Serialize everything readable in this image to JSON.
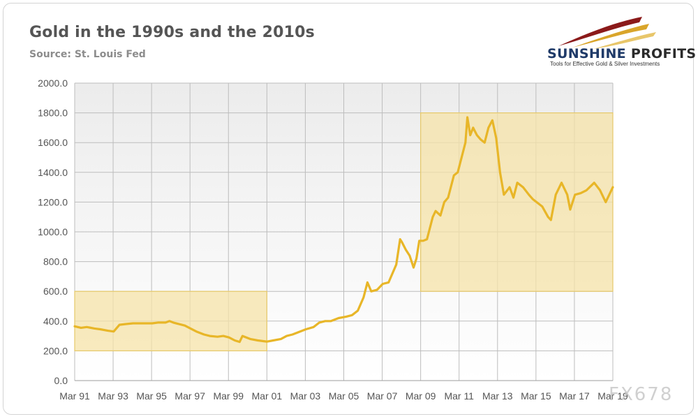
{
  "header": {
    "title": "Gold in the 1990s and the 2010s",
    "subtitle": "Source: St. Louis Fed"
  },
  "logo": {
    "name_part1": "SUNSHINE",
    "name_part2": " PROFITS",
    "tagline": "Tools for Effective Gold & Silver Investments"
  },
  "watermark": "FX678",
  "colors": {
    "line": "#e8b628",
    "highlight_fill": "#f5e3a8",
    "highlight_stroke": "#e6c96a",
    "plot_bg_top": "#ececec",
    "plot_bg_bottom": "#ffffff",
    "grid": "#bdbdbd"
  },
  "chart_data": {
    "type": "line",
    "title": "Gold in the 1990s and the 2010s",
    "xlabel": "",
    "ylabel": "",
    "xlim": [
      1991.17,
      2019.17
    ],
    "ylim": [
      0,
      2000
    ],
    "yticks": [
      "0.0",
      "200.0",
      "400.0",
      "600.0",
      "800.0",
      "1000.0",
      "1200.0",
      "1400.0",
      "1600.0",
      "1800.0",
      "2000.0"
    ],
    "xticks": [
      "Mar 91",
      "Mar 93",
      "Mar 95",
      "Mar 97",
      "Mar 99",
      "Mar 01",
      "Mar 03",
      "Mar 05",
      "Mar 07",
      "Mar 09",
      "Mar 11",
      "Mar 13",
      "Mar 15",
      "Mar 17",
      "Mar 19"
    ],
    "grid": true,
    "legend": "none",
    "highlight_regions": [
      {
        "x_from": "Mar 91",
        "x_to": "Mar 01",
        "y_from": 200,
        "y_to": 600
      },
      {
        "x_from": "Mar 09",
        "x_to": "Mar 19",
        "y_from": 600,
        "y_to": 1800
      }
    ],
    "series": [
      {
        "x": [
          1991.17,
          1991.5,
          1991.8,
          1992.2,
          1992.5,
          1992.9,
          1993.2,
          1993.5,
          1993.8,
          1994.2,
          1994.5,
          1994.9,
          1995.2,
          1995.5,
          1995.9,
          1996.1,
          1996.3,
          1996.6,
          1996.9,
          1997.2,
          1997.5,
          1997.9,
          1998.2,
          1998.6,
          1998.9,
          1999.2,
          1999.5,
          1999.75,
          1999.9,
          2000.3,
          2000.7,
          2001.17,
          2001.5,
          2001.9,
          2002.2,
          2002.5,
          2002.9,
          2003.2,
          2003.6,
          2003.9,
          2004.2,
          2004.5,
          2004.9,
          2005.3,
          2005.6,
          2005.9,
          2006.2,
          2006.4,
          2006.6,
          2006.9,
          2007.2,
          2007.5,
          2007.9,
          2008.1,
          2008.2,
          2008.4,
          2008.6,
          2008.8,
          2008.95,
          2009.1,
          2009.3,
          2009.5,
          2009.8,
          2009.95,
          2010.2,
          2010.4,
          2010.6,
          2010.9,
          2011.1,
          2011.3,
          2011.5,
          2011.6,
          2011.75,
          2011.9,
          2012.1,
          2012.3,
          2012.5,
          2012.7,
          2012.9,
          2013.1,
          2013.3,
          2013.5,
          2013.8,
          2014.0,
          2014.2,
          2014.5,
          2014.8,
          2015.0,
          2015.2,
          2015.5,
          2015.8,
          2015.95,
          2016.2,
          2016.5,
          2016.8,
          2016.95,
          2017.2,
          2017.5,
          2017.8,
          2018.2,
          2018.5,
          2018.8,
          2019.17
        ],
        "y": [
          365,
          355,
          360,
          350,
          345,
          335,
          330,
          375,
          380,
          385,
          385,
          385,
          385,
          390,
          390,
          400,
          390,
          380,
          370,
          350,
          330,
          310,
          300,
          295,
          300,
          290,
          270,
          260,
          300,
          280,
          270,
          262,
          270,
          280,
          300,
          310,
          330,
          345,
          360,
          390,
          400,
          400,
          420,
          430,
          440,
          470,
          560,
          660,
          600,
          610,
          650,
          660,
          780,
          950,
          930,
          880,
          840,
          760,
          820,
          940,
          940,
          950,
          1100,
          1140,
          1110,
          1200,
          1230,
          1380,
          1400,
          1500,
          1600,
          1770,
          1650,
          1700,
          1650,
          1620,
          1600,
          1700,
          1750,
          1630,
          1400,
          1250,
          1300,
          1230,
          1330,
          1300,
          1250,
          1220,
          1200,
          1170,
          1100,
          1080,
          1250,
          1330,
          1250,
          1150,
          1250,
          1260,
          1280,
          1330,
          1280,
          1200,
          1300
        ]
      }
    ]
  }
}
